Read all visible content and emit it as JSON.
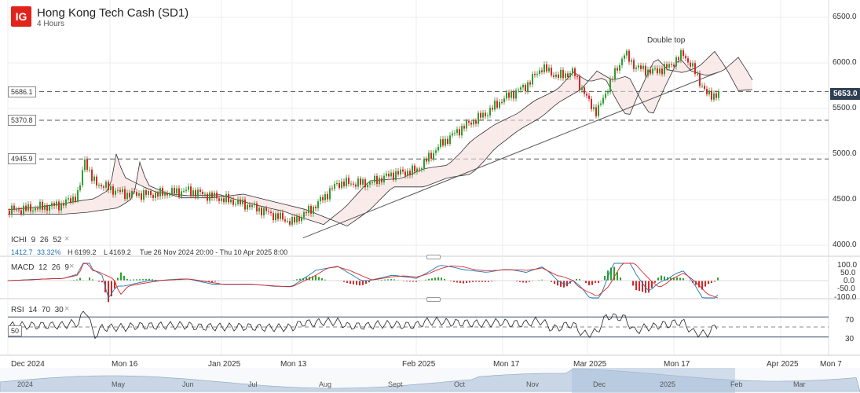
{
  "header": {
    "logo": "IG",
    "title": "Hong Kong Tech Cash (SD1)",
    "interval": "4 Hours"
  },
  "colors": {
    "up": "#2ca02c",
    "down": "#d62728",
    "ichimoku": "#333333",
    "macd": "#1f77b4",
    "signal": "#d62728",
    "rsi": "#222222",
    "rsi_band": "#3a4f68",
    "price_tag": "#2e3f52"
  },
  "price_panel": {
    "y_ticks": [
      "6500.0",
      "6000.0",
      "5500.0",
      "5000.0",
      "4500.0",
      "4000.0"
    ],
    "levels": [
      {
        "label": "5686.1",
        "value": 5686.1
      },
      {
        "label": "5370.8",
        "value": 5370.8
      },
      {
        "label": "4945.9",
        "value": 4945.9
      }
    ],
    "current_price": "5653.0",
    "annotation": "Double top",
    "ichimoku_label": "ICHI",
    "ichimoku_params": [
      "9",
      "26",
      "52"
    ],
    "info_change": "1412.7",
    "info_pct": "33.32%",
    "info_high": "H 6199.2",
    "info_low": "L 4169.2",
    "info_range": "Tue 26 Nov 2024 20:00 - Thu 10 Apr 2025 8:00"
  },
  "macd_panel": {
    "label": "MACD",
    "params": [
      "12",
      "26",
      "9"
    ],
    "y_ticks": [
      "100.0",
      "50.0",
      "0.0",
      "-50.0",
      "-100.0"
    ]
  },
  "rsi_panel": {
    "label": "RSI",
    "params": [
      "14",
      "70",
      "30"
    ],
    "y_ticks": [
      "70",
      "30"
    ],
    "mid_tag": "50"
  },
  "x_axis": {
    "labels": [
      "Dec 2024",
      "Mon 16",
      "Jan 2025",
      "Mon 13",
      "Feb 2025",
      "Mon 17",
      "Mar 2025",
      "Mon 17",
      "Apr 2025",
      "Mon 7"
    ]
  },
  "navigator": {
    "labels": [
      "2024",
      "May",
      "Jun",
      "Jul",
      "Aug",
      "Sept",
      "Oct",
      "Nov",
      "Dec",
      "2025",
      "Feb",
      "Mar"
    ]
  },
  "chart_data": {
    "type": "line",
    "title": "Hong Kong Tech Cash (SD1)",
    "x": [
      "Dec 2024",
      "Mon 16",
      "Jan 2025",
      "Mon 13",
      "Feb 2025",
      "Mon 17",
      "Mar 2025",
      "Mon 17",
      "Apr 2025"
    ],
    "series": [
      {
        "name": "Hong Kong Tech Cash (SD1)",
        "values": [
          4380,
          4620,
          4510,
          4250,
          4820,
          5750,
          5800,
          6050,
          5653
        ]
      }
    ],
    "ylim": [
      3900,
      6550
    ],
    "grid": true
  }
}
